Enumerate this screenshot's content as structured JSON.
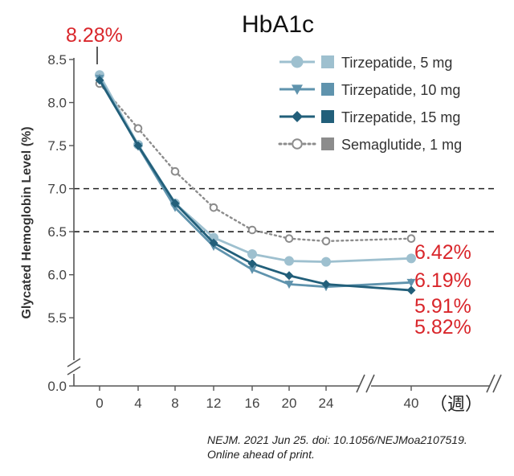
{
  "chart_data": {
    "type": "line",
    "title": "HbA1c",
    "ylabel": "Glycated Hemoglobin Level (%)",
    "x_unit_label": "（週）",
    "x": [
      0,
      4,
      8,
      12,
      16,
      20,
      24,
      40
    ],
    "xticks": [
      "0",
      "4",
      "8",
      "12",
      "16",
      "20",
      "24",
      "40"
    ],
    "ylim": [
      5.25,
      8.5
    ],
    "yticks": [
      5.5,
      6.0,
      6.5,
      7.0,
      7.5,
      8.0,
      8.5
    ],
    "y_tick_labels": [
      "5.5",
      "6.0",
      "6.5",
      "7.0",
      "7.5",
      "8.0",
      "8.5"
    ],
    "y_zero_label": "0.0",
    "axis_breaks": true,
    "reference_lines": [
      7.0,
      6.5
    ],
    "legend_position": "top-right",
    "series": [
      {
        "name": "Tirzepatide, 5 mg",
        "marker": "circle",
        "color": "#9ec0cf",
        "line": "solid",
        "values": [
          8.32,
          7.51,
          6.83,
          6.43,
          6.24,
          6.16,
          6.15,
          6.19
        ]
      },
      {
        "name": "Tirzepatide, 10 mg",
        "marker": "triangle-down",
        "color": "#5f93ad",
        "line": "solid",
        "values": [
          8.28,
          7.49,
          6.78,
          6.33,
          6.06,
          5.89,
          5.86,
          5.91
        ]
      },
      {
        "name": "Tirzepatide, 15 mg",
        "marker": "diamond",
        "color": "#225f7a",
        "line": "solid",
        "values": [
          8.26,
          7.5,
          6.83,
          6.37,
          6.13,
          5.99,
          5.89,
          5.82
        ]
      },
      {
        "name": "Semaglutide, 1 mg",
        "marker": "open-circle",
        "color": "#8c8c8c",
        "line": "dotted",
        "values": [
          8.22,
          7.7,
          7.2,
          6.78,
          6.52,
          6.42,
          6.39,
          6.42
        ]
      }
    ],
    "annotations": [
      {
        "text": "8.28%",
        "color": "#d9262b"
      },
      {
        "text": "6.42%",
        "color": "#d9262b"
      },
      {
        "text": "6.19%",
        "color": "#d9262b"
      },
      {
        "text": "5.91%",
        "color": "#d9262b"
      },
      {
        "text": "5.82%",
        "color": "#d9262b"
      }
    ]
  },
  "citation": {
    "line1": "NEJM. 2021 Jun 25. doi: 10.1056/NEJMoa2107519.",
    "line2": "Online ahead of print."
  }
}
